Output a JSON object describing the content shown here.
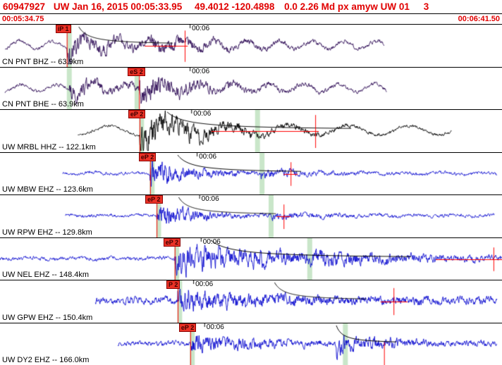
{
  "header": {
    "parts": [
      "60947927",
      "UW Jan 16, 2015 00:05:33.95",
      "49.4012 -120.4898",
      "0.0 2.26 Md px amyw UW 01",
      "3"
    ],
    "color": "#e00000"
  },
  "timebar": {
    "start": "00:05:34.75",
    "end": "00:06:41.50"
  },
  "colors": {
    "band_green": "#c9e6c9",
    "pick_red": "#ff0000",
    "curve_black": "#000000"
  },
  "traces": [
    {
      "station": "CN PNT BHZ -- 63.9km",
      "color": "#2d0a55",
      "pick": {
        "label": "iP 1",
        "frac": 0.133
      },
      "minute": {
        "text": "00:06",
        "frac": 0.378
      },
      "green_bands": [
        0.138
      ],
      "marks": [
        {
          "t": "v",
          "x": 0.368,
          "y0": 0.14,
          "y1": 0.88
        },
        {
          "t": "h",
          "x0": 0.288,
          "x1": 0.374,
          "y": 0.5
        }
      ],
      "curve": {
        "x0": 0.157,
        "x1": 0.345
      },
      "wave": {
        "start": 0.01,
        "end": 0.765,
        "base": 2.0,
        "lf": [
          5.5,
          46
        ],
        "bursts": [
          [
            0.133,
            14,
            70
          ],
          [
            0.3,
            5,
            110
          ]
        ],
        "seed": 101
      }
    },
    {
      "station": "CN PNT BHE -- 63.9km",
      "color": "#2d0a55",
      "pick": {
        "label": "eS 2",
        "frac": 0.277
      },
      "minute": {
        "text": "00:06",
        "frac": 0.378
      },
      "green_bands": [
        0.138,
        0.273
      ],
      "marks": [],
      "curve": null,
      "wave": {
        "start": 0.01,
        "end": 0.77,
        "base": 2.0,
        "lf": [
          5.5,
          50
        ],
        "bursts": [
          [
            0.138,
            9,
            60
          ],
          [
            0.277,
            11,
            85
          ]
        ],
        "seed": 202
      }
    },
    {
      "station": "UW MRBL HHZ -- 122.1km",
      "color": "#000000",
      "pick": {
        "label": "eP 2",
        "frac": 0.278
      },
      "minute": {
        "text": "00:06",
        "frac": 0.381
      },
      "green_bands": [
        0.282,
        0.513
      ],
      "marks": [
        {
          "t": "h",
          "x0": 0.421,
          "x1": 0.635,
          "y": 0.5
        },
        {
          "t": "v",
          "x": 0.628,
          "y0": 0.12,
          "y1": 0.9
        }
      ],
      "curve": {
        "x0": 0.333,
        "x1": 0.7
      },
      "wave": {
        "start": 0.155,
        "end": 0.9,
        "base": 1.5,
        "lf": [
          6.5,
          85
        ],
        "bursts": [
          [
            0.278,
            19,
            95
          ]
        ],
        "seed": 303
      }
    },
    {
      "station": "UW MBW EHZ -- 123.6km",
      "color": "#0b0bcf",
      "pick": {
        "label": "eP 2",
        "frac": 0.299
      },
      "minute": {
        "text": "00:06",
        "frac": 0.392
      },
      "green_bands": [
        0.303,
        0.522
      ],
      "marks": [
        {
          "t": "v",
          "x": 0.579,
          "y0": 0.22,
          "y1": 0.78
        },
        {
          "t": "h",
          "x0": 0.565,
          "x1": 0.593,
          "y": 0.5
        }
      ],
      "curve": {
        "x0": 0.354,
        "x1": 0.6
      },
      "wave": {
        "start": 0.125,
        "end": 0.99,
        "base": 1.8,
        "lf": [
          1.2,
          55
        ],
        "bursts": [
          [
            0.299,
            18,
            48
          ],
          [
            0.52,
            3.5,
            70
          ]
        ],
        "seed": 404
      }
    },
    {
      "station": "UW RPW EHZ -- 129.8km",
      "color": "#0b0bcf",
      "pick": {
        "label": "eP 2",
        "frac": 0.312
      },
      "minute": {
        "text": "00:06",
        "frac": 0.397
      },
      "green_bands": [
        0.316,
        0.54
      ],
      "marks": [
        {
          "t": "v",
          "x": 0.565,
          "y0": 0.22,
          "y1": 0.8
        },
        {
          "t": "h",
          "x0": 0.551,
          "x1": 0.579,
          "y": 0.5
        }
      ],
      "curve": {
        "x0": 0.356,
        "x1": 0.55
      },
      "wave": {
        "start": 0.13,
        "end": 0.985,
        "base": 1.8,
        "lf": [
          1.2,
          55
        ],
        "bursts": [
          [
            0.312,
            14,
            48
          ],
          [
            0.54,
            3,
            70
          ]
        ],
        "seed": 505
      }
    },
    {
      "station": "UW NEL EHZ -- 148.4km",
      "color": "#0b0bcf",
      "pick": {
        "label": "eP 2",
        "frac": 0.348
      },
      "minute": {
        "text": "00:06",
        "frac": 0.4
      },
      "green_bands": [
        0.352,
        0.617
      ],
      "marks": [
        {
          "t": "h",
          "x0": 0.868,
          "x1": 1.0,
          "y": 0.5
        },
        {
          "t": "v",
          "x": 0.983,
          "y0": 0.22,
          "y1": 0.78
        }
      ],
      "curve": {
        "x0": 0.42,
        "x1": 0.82
      },
      "wave": {
        "start": 0.0,
        "end": 1.0,
        "base": 2.2,
        "lf": [
          1.0,
          60
        ],
        "bursts": [
          [
            0.348,
            16,
            170
          ],
          [
            0.617,
            4,
            90
          ]
        ],
        "seed": 606
      }
    },
    {
      "station": "UW GPW EHZ -- 150.4km",
      "color": "#0b0bcf",
      "pick": {
        "label": "P 2",
        "frac": 0.354
      },
      "minute": {
        "text": "00:06",
        "frac": 0.385
      },
      "green_bands": [
        0.358
      ],
      "marks": [
        {
          "t": "v",
          "x": 0.784,
          "y0": 0.18,
          "y1": 0.82
        },
        {
          "t": "h",
          "x0": 0.758,
          "x1": 0.812,
          "y": 0.5
        }
      ],
      "curve": {
        "x0": 0.547,
        "x1": 0.73
      },
      "wave": {
        "start": 0.19,
        "end": 0.99,
        "base": 4.0,
        "lf": [
          1.2,
          42
        ],
        "bursts": [
          [
            0.354,
            11,
            120
          ]
        ],
        "seed": 707
      }
    },
    {
      "station": "UW DY2 EHZ -- 166.0km",
      "color": "#0b0bcf",
      "pick": {
        "label": "eP 2",
        "frac": 0.379
      },
      "minute": {
        "text": "00:06",
        "frac": 0.407
      },
      "green_bands": [
        0.383,
        0.688
      ],
      "marks": [
        {
          "t": "v",
          "x": 0.765,
          "y0": 0.45,
          "y1": 1.0
        }
      ],
      "curve": {
        "x0": 0.67,
        "x1": 0.79
      },
      "wave": {
        "start": 0.235,
        "end": 0.99,
        "base": 2.8,
        "lf": [
          1.0,
          50
        ],
        "bursts": [
          [
            0.379,
            9,
            95
          ],
          [
            0.67,
            8,
            75
          ]
        ],
        "seed": 808
      }
    }
  ]
}
